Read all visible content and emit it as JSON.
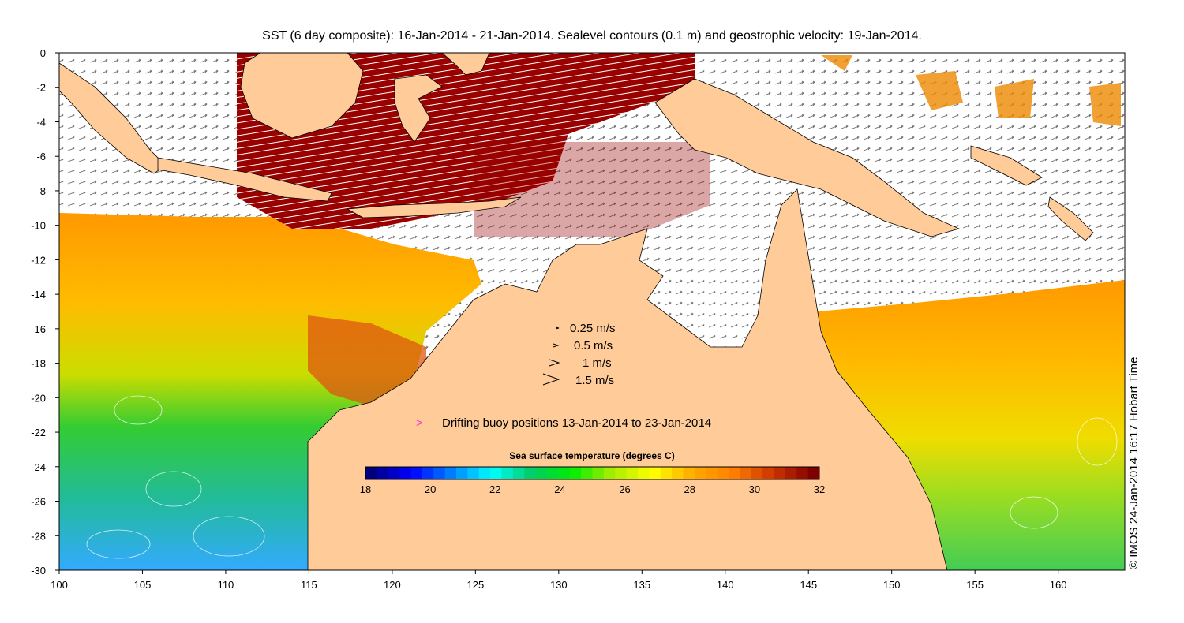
{
  "title": "SST (6 day composite): 16-Jan-2014 - 21-Jan-2014. Sealevel contours (0.1 m) and geostrophic velocity: 19-Jan-2014.",
  "credit": "© IMOS 24-Jan-2014 16:17 Hobart Time",
  "axes": {
    "x_ticks": [
      "100",
      "105",
      "110",
      "115",
      "120",
      "125",
      "130",
      "135",
      "140",
      "145",
      "150",
      "155",
      "160"
    ],
    "y_ticks": [
      "0",
      "-2",
      "-4",
      "-6",
      "-8",
      "-10",
      "-12",
      "-14",
      "-16",
      "-18",
      "-20",
      "-22",
      "-24",
      "-26",
      "-28",
      "-30"
    ],
    "lon_range": [
      100,
      164
    ],
    "lat_range": [
      -30,
      0
    ]
  },
  "velocity_legend": [
    {
      "label": "0.25 m/s",
      "speed": 0.25
    },
    {
      "label": "0.5 m/s",
      "speed": 0.5
    },
    {
      "label": "1 m/s",
      "speed": 1
    },
    {
      "label": "1.5 m/s",
      "speed": 1.5
    }
  ],
  "buoy_legend": {
    "symbol": ">",
    "label": "Drifting buoy positions 13-Jan-2014 to 23-Jan-2014",
    "color": "#ff33cc"
  },
  "colorbar": {
    "title": "Sea surface temperature (degrees C)",
    "range": [
      18,
      32
    ],
    "tick_labels": [
      "18",
      "20",
      "22",
      "24",
      "26",
      "28",
      "30",
      "32"
    ],
    "colors": [
      "#00007f",
      "#0000ff",
      "#007fff",
      "#00ffff",
      "#00cc66",
      "#00ee00",
      "#aaee00",
      "#ffff00",
      "#ffaa00",
      "#ff7f00",
      "#cc3300",
      "#800000"
    ]
  },
  "colors": {
    "land": "#ffcc99",
    "cloud": "#ffffff",
    "arrows": "#000000",
    "contours": "#ffffff"
  }
}
